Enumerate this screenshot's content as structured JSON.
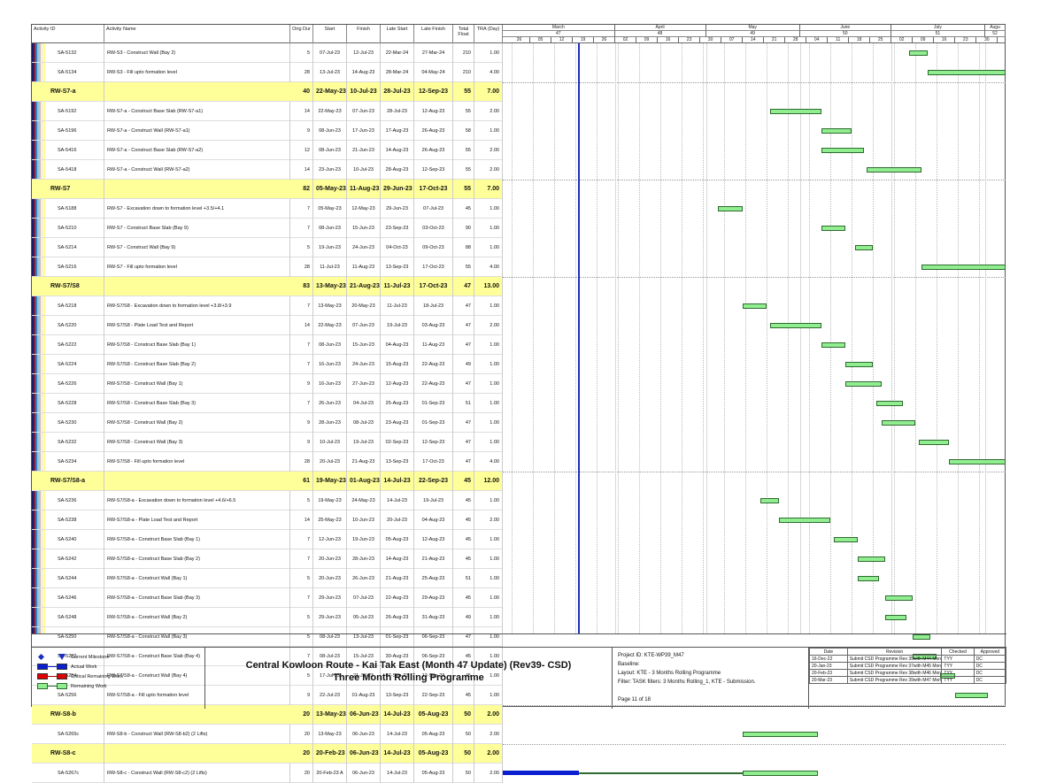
{
  "table": {
    "headers": {
      "activity_id": "Activity ID",
      "activity_name": "Activity Name",
      "orig_dur": "Orig Dur",
      "start": "Start",
      "finish": "Finish",
      "late_start": "Late Start",
      "late_finish": "Late Finish",
      "total_float": "Total Float",
      "tra": "TRA (Day)"
    },
    "rows": [
      {
        "type": "task",
        "id": "SA-5132",
        "name": "RW-S3 - Construct Wall (Bay 2)",
        "dur": "5",
        "start": "07-Jul-23",
        "finish": "12-Jul-23",
        "late_start": "22-Mar-24",
        "late_finish": "27-Mar-24",
        "float": "210",
        "tra": "1.00"
      },
      {
        "type": "task",
        "id": "SA-5134",
        "name": "RW-S3 - Fill upto formation level",
        "dur": "28",
        "start": "13-Jul-23",
        "finish": "14-Aug-23",
        "late_start": "28-Mar-24",
        "late_finish": "04-May-24",
        "float": "210",
        "tra": "4.00"
      },
      {
        "type": "group",
        "id": "RW-S7-a",
        "name": "",
        "dur": "40",
        "start": "22-May-23",
        "finish": "10-Jul-23",
        "late_start": "28-Jul-23",
        "late_finish": "12-Sep-23",
        "float": "55",
        "tra": "7.00"
      },
      {
        "type": "task",
        "id": "SA-5192",
        "name": "RW-S7-a - Construct Base Slab (RW-S7-a1)",
        "dur": "14",
        "start": "22-May-23",
        "finish": "07-Jun-23",
        "late_start": "28-Jul-23",
        "late_finish": "12-Aug-23",
        "float": "55",
        "tra": "2.00"
      },
      {
        "type": "task",
        "id": "SA-5196",
        "name": "RW-S7-a - Construct Wall (RW-S7-a1)",
        "dur": "9",
        "start": "08-Jun-23",
        "finish": "17-Jun-23",
        "late_start": "17-Aug-23",
        "late_finish": "26-Aug-23",
        "float": "58",
        "tra": "1.00"
      },
      {
        "type": "task",
        "id": "SA-5416",
        "name": "RW-S7-a - Construct Base Slab (RW-S7-a2)",
        "dur": "12",
        "start": "08-Jun-23",
        "finish": "21-Jun-23",
        "late_start": "14-Aug-23",
        "late_finish": "26-Aug-23",
        "float": "55",
        "tra": "2.00"
      },
      {
        "type": "task",
        "id": "SA-5418",
        "name": "RW-S7-a - Construct Wall (RW-S7-a2)",
        "dur": "14",
        "start": "23-Jun-23",
        "finish": "10-Jul-23",
        "late_start": "28-Aug-23",
        "late_finish": "12-Sep-23",
        "float": "55",
        "tra": "2.00"
      },
      {
        "type": "group",
        "id": "RW-S7",
        "name": "",
        "dur": "82",
        "start": "05-May-23",
        "finish": "11-Aug-23",
        "late_start": "29-Jun-23",
        "late_finish": "17-Oct-23",
        "float": "55",
        "tra": "7.00"
      },
      {
        "type": "task",
        "id": "SA-5188",
        "name": "RW-S7 - Excavation down to formation level +3.5/+4.1",
        "dur": "7",
        "start": "05-May-23",
        "finish": "12-May-23",
        "late_start": "29-Jun-23",
        "late_finish": "07-Jul-23",
        "float": "45",
        "tra": "1.00"
      },
      {
        "type": "task",
        "id": "SA-5210",
        "name": "RW-S7 - Construct Base Slab (Bay 9)",
        "dur": "7",
        "start": "08-Jun-23",
        "finish": "15-Jun-23",
        "late_start": "23-Sep-23",
        "late_finish": "03-Oct-23",
        "float": "90",
        "tra": "1.00"
      },
      {
        "type": "task",
        "id": "SA-5214",
        "name": "RW-S7 - Construct Wall (Bay 9)",
        "dur": "5",
        "start": "19-Jun-23",
        "finish": "24-Jun-23",
        "late_start": "04-Oct-23",
        "late_finish": "09-Oct-23",
        "float": "88",
        "tra": "1.00"
      },
      {
        "type": "task",
        "id": "SA-5216",
        "name": "RW-S7 - Fill upto formation level",
        "dur": "28",
        "start": "11-Jul-23",
        "finish": "11-Aug-23",
        "late_start": "13-Sep-23",
        "late_finish": "17-Oct-23",
        "float": "55",
        "tra": "4.00"
      },
      {
        "type": "group",
        "id": "RW-S7/S8",
        "name": "",
        "dur": "83",
        "start": "13-May-23",
        "finish": "21-Aug-23",
        "late_start": "11-Jul-23",
        "late_finish": "17-Oct-23",
        "float": "47",
        "tra": "13.00"
      },
      {
        "type": "task",
        "id": "SA-5218",
        "name": "RW-S7/S8 - Excavation down to formation level +3.8/+3.9",
        "dur": "7",
        "start": "13-May-23",
        "finish": "20-May-23",
        "late_start": "11-Jul-23",
        "late_finish": "18-Jul-23",
        "float": "47",
        "tra": "1.00"
      },
      {
        "type": "task",
        "id": "SA-5220",
        "name": "RW-S7/S8 - Plate Load Test and Report",
        "dur": "14",
        "start": "22-May-23",
        "finish": "07-Jun-23",
        "late_start": "19-Jul-23",
        "late_finish": "03-Aug-23",
        "float": "47",
        "tra": "2.00"
      },
      {
        "type": "task",
        "id": "SA-5222",
        "name": "RW-S7/S8 - Construct Base Slab (Bay 1)",
        "dur": "7",
        "start": "08-Jun-23",
        "finish": "15-Jun-23",
        "late_start": "04-Aug-23",
        "late_finish": "11-Aug-23",
        "float": "47",
        "tra": "1.00"
      },
      {
        "type": "task",
        "id": "SA-5224",
        "name": "RW-S7/S8 - Construct Base Slab (Bay 2)",
        "dur": "7",
        "start": "16-Jun-23",
        "finish": "24-Jun-23",
        "late_start": "15-Aug-23",
        "late_finish": "22-Aug-23",
        "float": "49",
        "tra": "1.00"
      },
      {
        "type": "task",
        "id": "SA-5226",
        "name": "RW-S7/S8 - Construct Wall (Bay 1)",
        "dur": "9",
        "start": "16-Jun-23",
        "finish": "27-Jun-23",
        "late_start": "12-Aug-23",
        "late_finish": "22-Aug-23",
        "float": "47",
        "tra": "1.00"
      },
      {
        "type": "task",
        "id": "SA-5228",
        "name": "RW-S7/S8 - Construct Base Slab (Bay 3)",
        "dur": "7",
        "start": "26-Jun-23",
        "finish": "04-Jul-23",
        "late_start": "25-Aug-23",
        "late_finish": "01-Sep-23",
        "float": "51",
        "tra": "1.00"
      },
      {
        "type": "task",
        "id": "SA-5230",
        "name": "RW-S7/S8 - Construct Wall (Bay 2)",
        "dur": "9",
        "start": "28-Jun-23",
        "finish": "08-Jul-23",
        "late_start": "23-Aug-23",
        "late_finish": "01-Sep-23",
        "float": "47",
        "tra": "1.00"
      },
      {
        "type": "task",
        "id": "SA-5232",
        "name": "RW-S7/S8 - Construct Wall (Bay 3)",
        "dur": "9",
        "start": "10-Jul-23",
        "finish": "19-Jul-23",
        "late_start": "02-Sep-23",
        "late_finish": "12-Sep-23",
        "float": "47",
        "tra": "1.00"
      },
      {
        "type": "task",
        "id": "SA-5234",
        "name": "RW-S7/S8 - Fill upto formation level",
        "dur": "28",
        "start": "20-Jul-23",
        "finish": "21-Aug-23",
        "late_start": "13-Sep-23",
        "late_finish": "17-Oct-23",
        "float": "47",
        "tra": "4.00"
      },
      {
        "type": "group",
        "id": "RW-S7/S8-a",
        "name": "",
        "dur": "61",
        "start": "19-May-23",
        "finish": "01-Aug-23",
        "late_start": "14-Jul-23",
        "late_finish": "22-Sep-23",
        "float": "45",
        "tra": "12.00"
      },
      {
        "type": "task",
        "id": "SA-5236",
        "name": "RW-S7/S8-a - Excavation down to formation level +4.6/+6.5",
        "dur": "5",
        "start": "19-May-23",
        "finish": "24-May-23",
        "late_start": "14-Jul-23",
        "late_finish": "19-Jul-23",
        "float": "45",
        "tra": "1.00"
      },
      {
        "type": "task",
        "id": "SA-5238",
        "name": "RW-S7/S8-a - Plate Load Test and Report",
        "dur": "14",
        "start": "25-May-23",
        "finish": "10-Jun-23",
        "late_start": "20-Jul-23",
        "late_finish": "04-Aug-23",
        "float": "45",
        "tra": "2.00"
      },
      {
        "type": "task",
        "id": "SA-5240",
        "name": "RW-S7/S8-a - Construct Base Slab (Bay 1)",
        "dur": "7",
        "start": "12-Jun-23",
        "finish": "19-Jun-23",
        "late_start": "05-Aug-23",
        "late_finish": "12-Aug-23",
        "float": "45",
        "tra": "1.00"
      },
      {
        "type": "task",
        "id": "SA-5242",
        "name": "RW-S7/S8-a - Construct Base Slab (Bay 2)",
        "dur": "7",
        "start": "20-Jun-23",
        "finish": "28-Jun-23",
        "late_start": "14-Aug-23",
        "late_finish": "21-Aug-23",
        "float": "45",
        "tra": "1.00"
      },
      {
        "type": "task",
        "id": "SA-5244",
        "name": "RW-S7/S8-a - Construct Wall (Bay 1)",
        "dur": "5",
        "start": "20-Jun-23",
        "finish": "26-Jun-23",
        "late_start": "21-Aug-23",
        "late_finish": "25-Aug-23",
        "float": "51",
        "tra": "1.00"
      },
      {
        "type": "task",
        "id": "SA-5246",
        "name": "RW-S7/S8-a - Construct Base Slab (Bay 3)",
        "dur": "7",
        "start": "29-Jun-23",
        "finish": "07-Jul-23",
        "late_start": "22-Aug-23",
        "late_finish": "29-Aug-23",
        "float": "45",
        "tra": "1.00"
      },
      {
        "type": "task",
        "id": "SA-5248",
        "name": "RW-S7/S8-a - Construct Wall (Bay 2)",
        "dur": "5",
        "start": "29-Jun-23",
        "finish": "05-Jul-23",
        "late_start": "26-Aug-23",
        "late_finish": "31-Aug-23",
        "float": "49",
        "tra": "1.00"
      },
      {
        "type": "task",
        "id": "SA-5250",
        "name": "RW-S7/S8-a - Construct Wall (Bay 3)",
        "dur": "5",
        "start": "08-Jul-23",
        "finish": "13-Jul-23",
        "late_start": "01-Sep-23",
        "late_finish": "06-Sep-23",
        "float": "47",
        "tra": "1.00"
      },
      {
        "type": "task",
        "id": "SA-5252",
        "name": "RW-S7/S8-a - Construct Base Slab (Bay 4)",
        "dur": "7",
        "start": "08-Jul-23",
        "finish": "15-Jul-23",
        "late_start": "30-Aug-23",
        "late_finish": "06-Sep-23",
        "float": "45",
        "tra": "1.00"
      },
      {
        "type": "task",
        "id": "SA-5254",
        "name": "RW-S7/S8-a - Construct Wall (Bay 4)",
        "dur": "5",
        "start": "17-Jul-23",
        "finish": "21-Jul-23",
        "late_start": "07-Sep-23",
        "late_finish": "12-Sep-23",
        "float": "45",
        "tra": "1.00"
      },
      {
        "type": "task",
        "id": "SA-5256",
        "name": "RW-S7/S8-a - Fill upto formation level",
        "dur": "9",
        "start": "22-Jul-23",
        "finish": "01-Aug-23",
        "late_start": "13-Sep-23",
        "late_finish": "22-Sep-23",
        "float": "45",
        "tra": "1.00"
      },
      {
        "type": "group",
        "id": "RW-S8-b",
        "name": "",
        "dur": "20",
        "start": "13-May-23",
        "finish": "06-Jun-23",
        "late_start": "14-Jul-23",
        "late_finish": "05-Aug-23",
        "float": "50",
        "tra": "2.00"
      },
      {
        "type": "task",
        "id": "SA-5265c",
        "name": "RW-S8-b - Construct Wall (RW-S8-b2) (2 Lifts)",
        "dur": "20",
        "start": "13-May-23",
        "finish": "06-Jun-23",
        "late_start": "14-Jul-23",
        "late_finish": "05-Aug-23",
        "float": "50",
        "tra": "2.00"
      },
      {
        "type": "group",
        "id": "RW-S8-c",
        "name": "",
        "dur": "20",
        "start": "20-Feb-23 A",
        "finish": "06-Jun-23",
        "late_start": "14-Jul-23",
        "late_finish": "05-Aug-23",
        "float": "50",
        "tra": "2.00"
      },
      {
        "type": "task",
        "id": "SA-5267c",
        "name": "RW-S8-c - Construct Wall (RW-S8-c2) (2 Lifts)",
        "dur": "20",
        "start": "20-Feb-23 A",
        "finish": "06-Jun-23",
        "late_start": "14-Jul-23",
        "late_finish": "05-Aug-23",
        "float": "50",
        "tra": "2.00"
      }
    ]
  },
  "timeline": {
    "months": [
      {
        "label": "March",
        "week": "47"
      },
      {
        "label": "April",
        "week": "48"
      },
      {
        "label": "May",
        "week": "49"
      },
      {
        "label": "June",
        "week": "50"
      },
      {
        "label": "July",
        "week": "51"
      },
      {
        "label": "Augu",
        "week": "52"
      }
    ],
    "days": [
      "26",
      "05",
      "12",
      "19",
      "26",
      "02",
      "09",
      "16",
      "23",
      "30",
      "07",
      "14",
      "21",
      "28",
      "04",
      "11",
      "18",
      "25",
      "02",
      "09",
      "16",
      "23",
      "30"
    ],
    "data_date": "19-Mar-23"
  },
  "colors": {
    "group_band": "#ffff99",
    "remaining_bar": "#90ee90",
    "bar_border": "#2e6b2e",
    "actual_bar": "#0a1fd0",
    "critical_bar": "#e00000",
    "data_date_line": "#1a2fbf"
  },
  "legend": {
    "items": [
      {
        "label": "Current Milestone",
        "icon": "diamond-milestone-icon"
      },
      {
        "label": "Actual Work",
        "icon": "actual-bar-icon"
      },
      {
        "label": "Critical Remaining Work",
        "icon": "critical-bar-icon"
      },
      {
        "label": "Remaining Work",
        "icon": "remaining-bar-icon"
      }
    ]
  },
  "title": {
    "line1": "Central Kowloon Route - Kai Tak East (Month 47 Update) (Rev39- CSD)",
    "line2": "Three Month Rolling Programme"
  },
  "info": {
    "project_id": "Project ID: KTE-WP39_M47",
    "baseline": "Baseline:",
    "layout": "Layout: KTE - 3 Months Rolling Programme",
    "filter": "Filter: TASK filters: 3 Months Rolling_1, KTE - Submission.",
    "page": "Page 11 of 18"
  },
  "revisions": {
    "headers": {
      "date": "Date",
      "revision": "Revision",
      "checked": "Checked",
      "approved": "Approved"
    },
    "rows": [
      {
        "date": "16-Dec-22",
        "revision": "Submit CSD Programme Rev 35with M44 Mon...",
        "checked": "TYY",
        "approved": "DC"
      },
      {
        "date": "20-Jan-23",
        "revision": "Submit CSD Programme Rev 37with M45 Mon...",
        "checked": "TYY",
        "approved": "DC"
      },
      {
        "date": "20-Feb-23",
        "revision": "Submit CSD Programme Rev 38with M46 Mon...",
        "checked": "TYY",
        "approved": "DC"
      },
      {
        "date": "20-Mar-23",
        "revision": "Submit CSD Programme Rev 39with M47 Mon...",
        "checked": "TYY",
        "approved": "DC"
      }
    ]
  },
  "chart_data": {
    "type": "gantt",
    "title": "Central Kowloon Route - Kai Tak East (Month 47 Update) (Rev39- CSD) - Three Month Rolling Programme",
    "x_range": [
      "26-Feb-23",
      "30-Jul-23"
    ],
    "data_date": "19-Mar-23",
    "tasks": [
      {
        "id": "SA-5132",
        "start": "07-Jul-23",
        "finish": "12-Jul-23"
      },
      {
        "id": "SA-5134",
        "start": "13-Jul-23",
        "finish": "14-Aug-23"
      },
      {
        "id": "SA-5192",
        "start": "22-May-23",
        "finish": "07-Jun-23"
      },
      {
        "id": "SA-5196",
        "start": "08-Jun-23",
        "finish": "17-Jun-23"
      },
      {
        "id": "SA-5416",
        "start": "08-Jun-23",
        "finish": "21-Jun-23"
      },
      {
        "id": "SA-5418",
        "start": "23-Jun-23",
        "finish": "10-Jul-23"
      },
      {
        "id": "SA-5188",
        "start": "05-May-23",
        "finish": "12-May-23"
      },
      {
        "id": "SA-5210",
        "start": "08-Jun-23",
        "finish": "15-Jun-23"
      },
      {
        "id": "SA-5214",
        "start": "19-Jun-23",
        "finish": "24-Jun-23"
      },
      {
        "id": "SA-5216",
        "start": "11-Jul-23",
        "finish": "11-Aug-23"
      },
      {
        "id": "SA-5218",
        "start": "13-May-23",
        "finish": "20-May-23"
      },
      {
        "id": "SA-5220",
        "start": "22-May-23",
        "finish": "07-Jun-23"
      },
      {
        "id": "SA-5222",
        "start": "08-Jun-23",
        "finish": "15-Jun-23"
      },
      {
        "id": "SA-5224",
        "start": "16-Jun-23",
        "finish": "24-Jun-23"
      },
      {
        "id": "SA-5226",
        "start": "16-Jun-23",
        "finish": "27-Jun-23"
      },
      {
        "id": "SA-5228",
        "start": "26-Jun-23",
        "finish": "04-Jul-23"
      },
      {
        "id": "SA-5230",
        "start": "28-Jun-23",
        "finish": "08-Jul-23"
      },
      {
        "id": "SA-5232",
        "start": "10-Jul-23",
        "finish": "19-Jul-23"
      },
      {
        "id": "SA-5234",
        "start": "20-Jul-23",
        "finish": "21-Aug-23"
      },
      {
        "id": "SA-5236",
        "start": "19-May-23",
        "finish": "24-May-23"
      },
      {
        "id": "SA-5238",
        "start": "25-May-23",
        "finish": "10-Jun-23"
      },
      {
        "id": "SA-5240",
        "start": "12-Jun-23",
        "finish": "19-Jun-23"
      },
      {
        "id": "SA-5242",
        "start": "20-Jun-23",
        "finish": "28-Jun-23"
      },
      {
        "id": "SA-5244",
        "start": "20-Jun-23",
        "finish": "26-Jun-23"
      },
      {
        "id": "SA-5246",
        "start": "29-Jun-23",
        "finish": "07-Jul-23"
      },
      {
        "id": "SA-5248",
        "start": "29-Jun-23",
        "finish": "05-Jul-23"
      },
      {
        "id": "SA-5250",
        "start": "08-Jul-23",
        "finish": "13-Jul-23"
      },
      {
        "id": "SA-5252",
        "start": "08-Jul-23",
        "finish": "15-Jul-23"
      },
      {
        "id": "SA-5254",
        "start": "17-Jul-23",
        "finish": "21-Jul-23"
      },
      {
        "id": "SA-5256",
        "start": "22-Jul-23",
        "finish": "01-Aug-23"
      },
      {
        "id": "SA-5265c",
        "start": "13-May-23",
        "finish": "06-Jun-23"
      },
      {
        "id": "SA-5267c",
        "start": "20-Feb-23",
        "finish": "06-Jun-23",
        "actual_until": "19-Mar-23"
      }
    ]
  }
}
